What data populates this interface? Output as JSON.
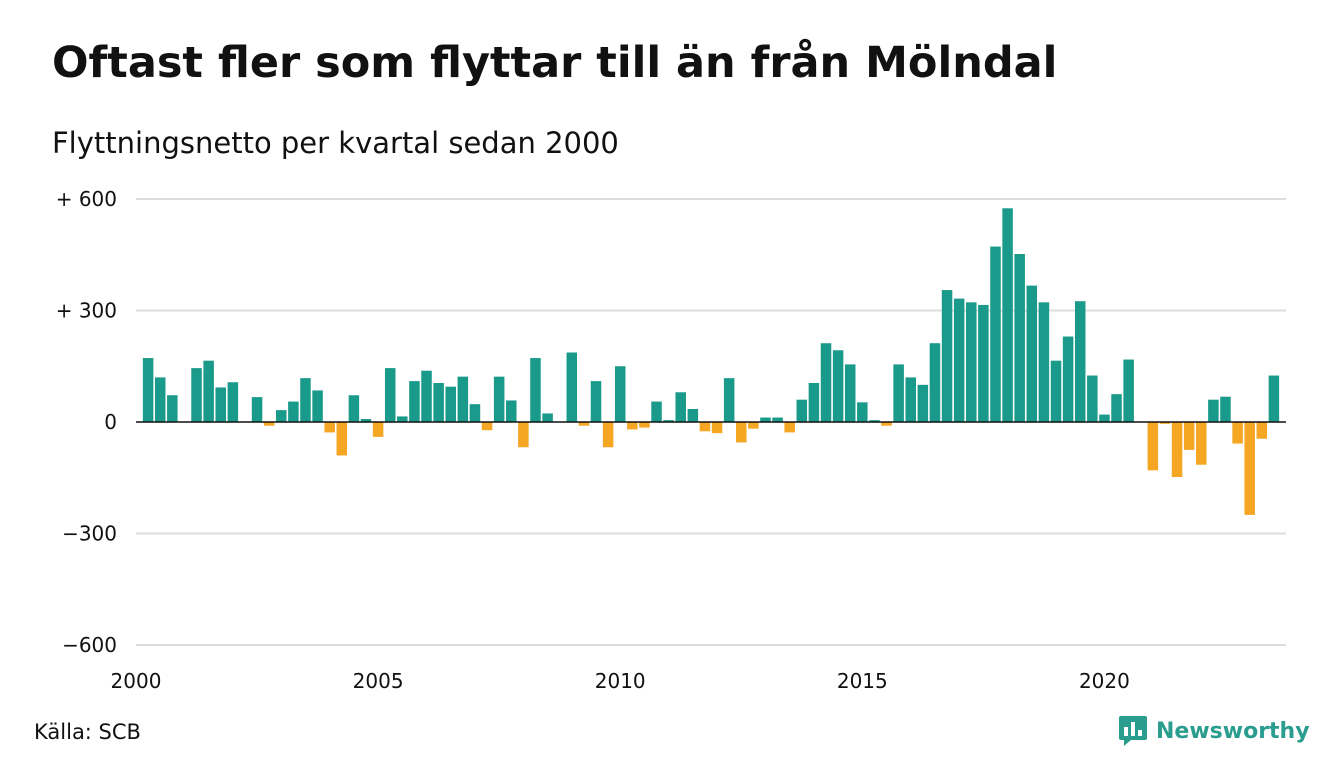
{
  "title": "Oftast fler som flyttar till än från Mölndal",
  "subtitle": "Flyttningsnetto per kvartal sedan 2000",
  "source": "Källa: SCB",
  "brand": {
    "name": "Newsworthy",
    "icon": "newsworthy-logo-icon"
  },
  "colors": {
    "positive": "#1a9a8a",
    "negative": "#f5a623",
    "grid": "#dddddd",
    "zero_line": "#111111",
    "brand": "#2a9d8f"
  },
  "chart_data": {
    "type": "bar",
    "title": "Oftast fler som flyttar till än från Mölndal",
    "subtitle": "Flyttningsnetto per kvartal sedan 2000",
    "xlabel": "",
    "ylabel": "",
    "ylim": [
      -600,
      600
    ],
    "yticks": [
      600,
      300,
      0,
      -300,
      -600
    ],
    "ytick_labels": [
      "+ 600",
      "+ 300",
      "0",
      "−300",
      "−600"
    ],
    "xticks": [
      2000,
      2005,
      2010,
      2015,
      2020
    ],
    "xtick_labels": [
      "2000",
      "2005",
      "2010",
      "2015",
      "2020"
    ],
    "xlim": [
      2000,
      2023.75
    ],
    "grid": true,
    "bar_start_year": 2000.25,
    "quarter_step": 0.25,
    "series": [
      {
        "values": [
          172,
          120,
          72,
          0,
          145,
          165,
          93,
          107,
          0,
          67,
          -10,
          32,
          55,
          118,
          85,
          -28,
          -90,
          72,
          8,
          -40,
          145,
          15,
          110,
          138,
          105,
          95,
          122,
          48,
          -22,
          122,
          58,
          -68,
          172,
          23,
          0,
          187,
          -10,
          110,
          -68,
          150,
          -20,
          -15,
          55,
          5,
          80,
          35,
          -25,
          -30,
          118,
          -55,
          -18,
          12,
          12,
          -28,
          60,
          105,
          212,
          193,
          155,
          53,
          5,
          -10,
          155,
          120,
          100,
          212,
          355,
          332,
          322,
          315,
          472,
          575,
          452,
          367,
          322,
          165,
          230,
          325,
          125,
          20,
          75,
          168,
          0,
          -130,
          -5,
          -148,
          -75,
          -115,
          60,
          68,
          -58,
          -250,
          -45,
          125
        ]
      }
    ]
  }
}
